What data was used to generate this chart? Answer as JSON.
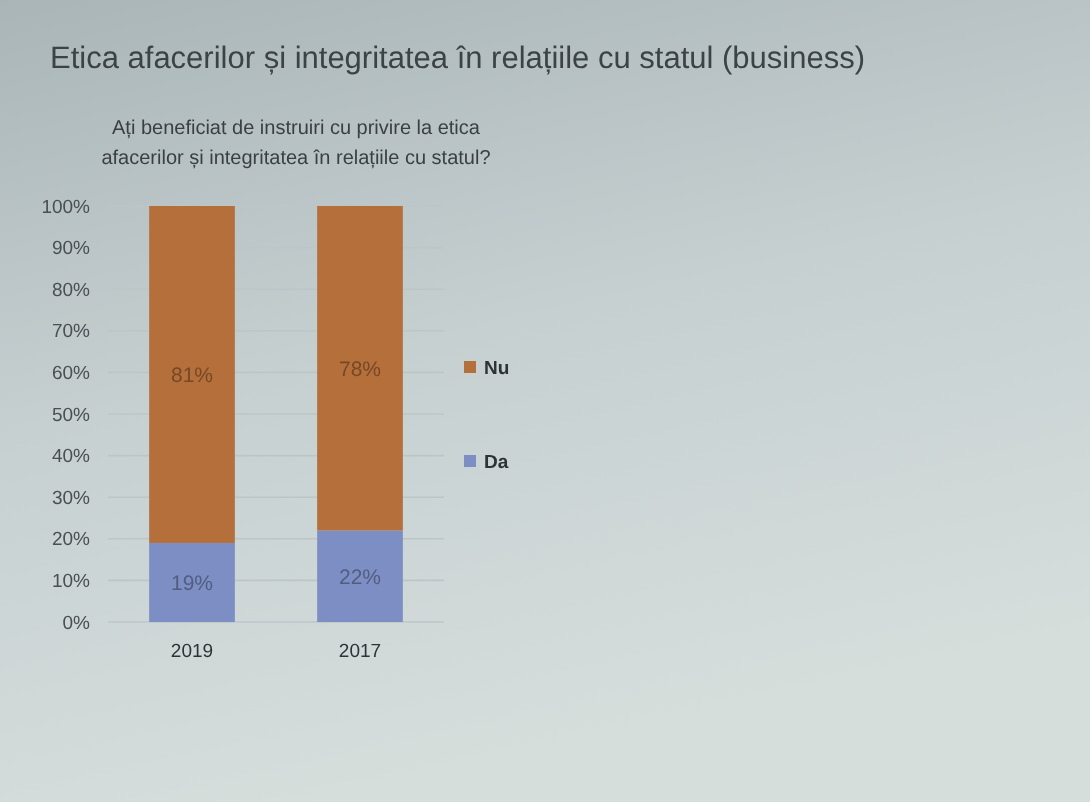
{
  "chart_data": {
    "type": "bar",
    "title": "Etica afacerilor și integritatea în relațiile cu statul (business)",
    "subtitle": "Ați beneficiat de instruiri cu privire la etica afacerilor și integritatea în relațiile cu statul?",
    "categories": [
      "2019",
      "2017"
    ],
    "stacked": true,
    "series": [
      {
        "name": "Da",
        "color": "#7d8ec4",
        "values": [
          19,
          22
        ],
        "value_labels": [
          "19%",
          "22%"
        ]
      },
      {
        "name": "Nu",
        "color": "#b56f3a",
        "values": [
          81,
          78
        ],
        "value_labels": [
          "81%",
          "78%"
        ]
      }
    ],
    "ylim": [
      0,
      100
    ],
    "yticks": [
      {
        "value": 0,
        "label": "0%"
      },
      {
        "value": 10,
        "label": "10%"
      },
      {
        "value": 20,
        "label": "20%"
      },
      {
        "value": 30,
        "label": "30%"
      },
      {
        "value": 40,
        "label": "40%"
      },
      {
        "value": 50,
        "label": "50%"
      },
      {
        "value": 60,
        "label": "60%"
      },
      {
        "value": 70,
        "label": "70%"
      },
      {
        "value": 80,
        "label": "80%"
      },
      {
        "value": 90,
        "label": "90%"
      },
      {
        "value": 100,
        "label": "100%"
      }
    ],
    "grid": "y",
    "legend": "right"
  }
}
